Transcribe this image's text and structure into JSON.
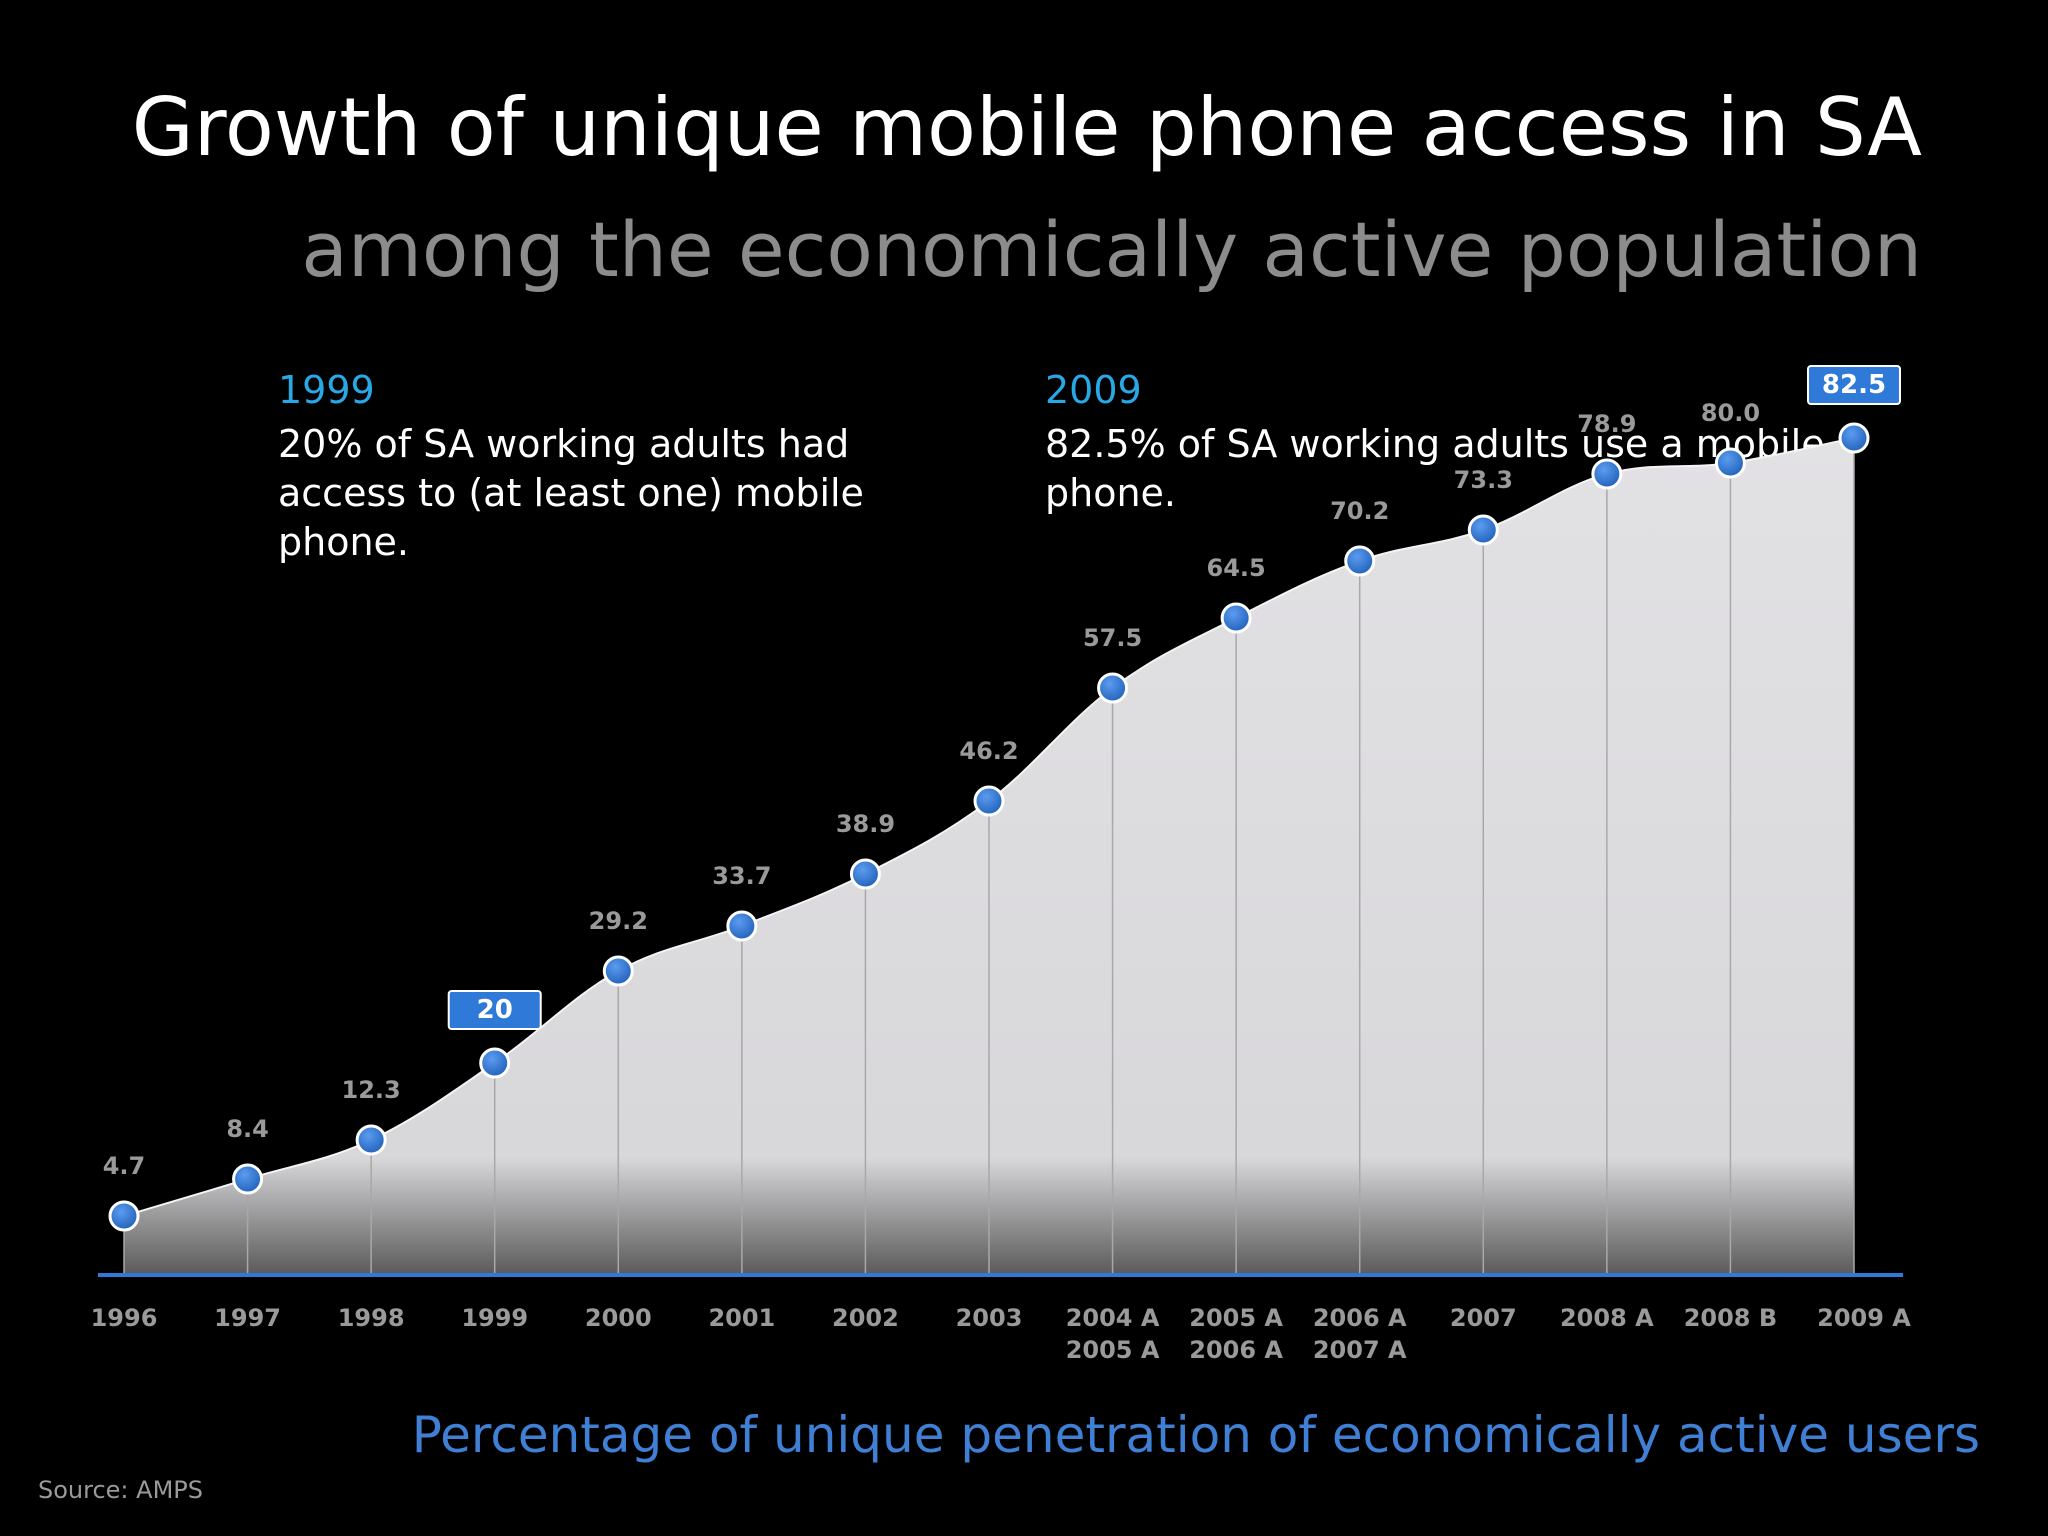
{
  "header": {
    "title": "Growth of unique mobile phone access in SA",
    "subtitle": "among the economically active population"
  },
  "callouts": [
    {
      "year": "1999",
      "text": "20% of SA working adults had access to (at least one) mobile phone."
    },
    {
      "year": "2009",
      "text": "82.5% of SA working adults use a mobile phone."
    }
  ],
  "caption": "Percentage of unique penetration of economically active users",
  "source": "Source: AMPS",
  "colors": {
    "area_fill": "#dcdcdc",
    "marker": "#2f7ad8",
    "baseline": "#2f7ad8",
    "highlight_box": "#2f7ad8"
  },
  "chart_data": {
    "type": "area",
    "categories": [
      "1996",
      "1997",
      "1998",
      "1999",
      "2000",
      "2001",
      "2002",
      "2003",
      "2004 A\n2005 A",
      "2005 A\n2006 A",
      "2006 A\n2007 A",
      "2007",
      "2008 A",
      "2008 B",
      "2009 A"
    ],
    "values": [
      4.7,
      8.4,
      12.3,
      20,
      29.2,
      33.7,
      38.9,
      46.2,
      57.5,
      64.5,
      70.2,
      73.3,
      78.9,
      80.0,
      82.5
    ],
    "value_labels": [
      "4.7",
      "8.4",
      "12.3",
      "20",
      "29.2",
      "33.7",
      "38.9",
      "46.2",
      "57.5",
      "64.5",
      "70.2",
      "73.3",
      "78.9",
      "80.0",
      "82.5"
    ],
    "highlighted": [
      "1999",
      "2009 A"
    ],
    "ylim": [
      0,
      85
    ],
    "grid": false,
    "legend": "none"
  }
}
